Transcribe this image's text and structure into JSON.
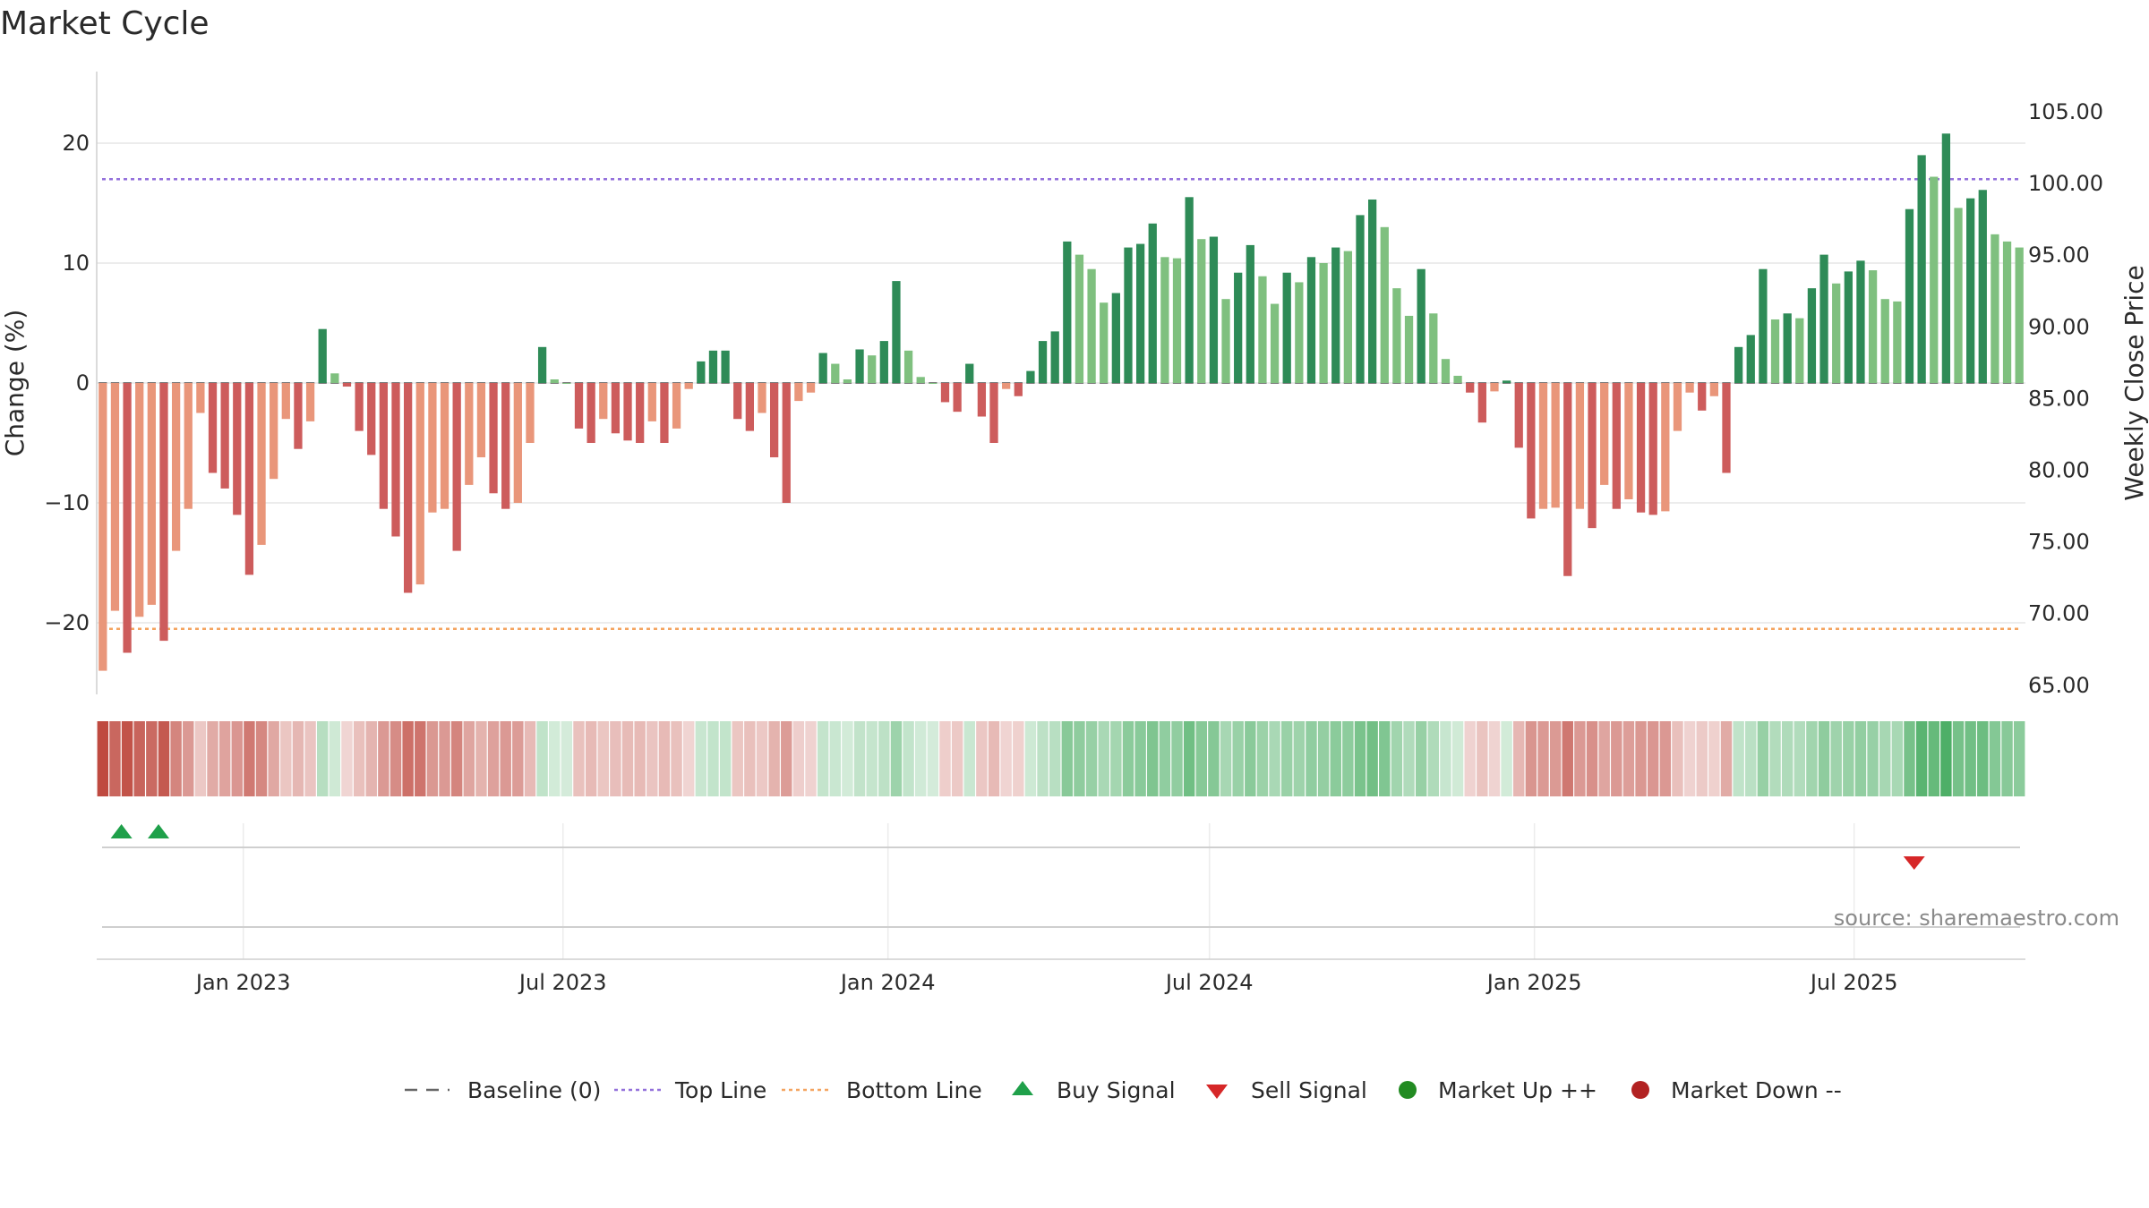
{
  "title": "Market Cycle",
  "chart_data": {
    "type": "bar",
    "title": "Market Cycle",
    "ylabel_left": "Change (%)",
    "ylabel_right": "Weekly Close Price",
    "ylim_left": [
      -26,
      26
    ],
    "ylim_right": [
      65,
      106
    ],
    "yticks_left": [
      20,
      10,
      0,
      -10,
      -20
    ],
    "yticks_left_labels": [
      "20",
      "10",
      "0",
      "−10",
      "−20"
    ],
    "yticks_right": [
      "105.00",
      "100.00",
      "95.00",
      "90.00",
      "85.00",
      "80.00",
      "75.00",
      "70.00",
      "65.00"
    ],
    "x_start": "2022-10-10",
    "x_end": "2025-10-06",
    "x_ticks": [
      {
        "date": "2023-01-01",
        "label": "Jan 2023"
      },
      {
        "date": "2023-07-01",
        "label": "Jul 2023"
      },
      {
        "date": "2024-01-01",
        "label": "Jan 2024"
      },
      {
        "date": "2024-07-01",
        "label": "Jul 2024"
      },
      {
        "date": "2025-01-01",
        "label": "Jan 2025"
      },
      {
        "date": "2025-07-01",
        "label": "Jul 2025"
      }
    ],
    "top_line": 17,
    "bottom_line": -20.5,
    "grid": true,
    "values": [
      -24,
      -19,
      -22.5,
      -19.5,
      -18.5,
      -21.5,
      -14,
      -10.5,
      -2.5,
      -7.5,
      -8.8,
      -11,
      -16,
      -13.5,
      -8,
      -3,
      -5.5,
      -3.2,
      4.5,
      0.8,
      -0.3,
      -4,
      -6,
      -10.5,
      -12.8,
      -17.5,
      -16.8,
      -10.8,
      -10.5,
      -14,
      -8.5,
      -6.2,
      -9.2,
      -10.5,
      -10,
      -5,
      3,
      0.3,
      0,
      -3.8,
      -5,
      -3,
      -4.2,
      -4.8,
      -5,
      -3.2,
      -5,
      -3.8,
      -0.5,
      1.8,
      2.7,
      2.7,
      -3,
      -4,
      -2.5,
      -6.2,
      -10,
      -1.5,
      -0.8,
      2.5,
      1.6,
      0.3,
      2.8,
      2.3,
      3.5,
      8.5,
      2.7,
      0.5,
      0,
      -1.6,
      -2.4,
      1.6,
      -2.8,
      -5,
      -0.5,
      -1.1,
      1,
      3.5,
      4.3,
      11.8,
      10.7,
      9.5,
      6.7,
      7.5,
      11.3,
      11.6,
      13.3,
      10.5,
      10.4,
      15.5,
      12,
      12.2,
      7,
      9.2,
      11.5,
      8.9,
      6.6,
      9.2,
      8.4,
      10.5,
      10,
      11.3,
      11,
      14,
      15.3,
      13,
      7.9,
      5.6,
      9.5,
      5.8,
      2,
      0.6,
      -0.8,
      -3.3,
      -0.7,
      0.2,
      -5.4,
      -11.3,
      -10.5,
      -10.4,
      -16.1,
      -10.5,
      -12.1,
      -8.5,
      -10.5,
      -9.7,
      -10.8,
      -11,
      -10.7,
      -4,
      -0.8,
      -2.3,
      -1.1,
      -7.5,
      3,
      4,
      9.5,
      5.3,
      5.8,
      5.4,
      7.9,
      10.7,
      8.3,
      9.3,
      10.2,
      9.4,
      7,
      6.8,
      14.5,
      19,
      17.2,
      20.8,
      14.6,
      15.4,
      16.1,
      12.4,
      11.8,
      11.3
    ],
    "buy_signals": [
      "2022-10-24",
      "2022-11-14"
    ],
    "sell_signals": [
      "2025-08-04"
    ],
    "legend": [
      {
        "key": "baseline",
        "label": "Baseline (0)"
      },
      {
        "key": "top",
        "label": "Top Line"
      },
      {
        "key": "bottom",
        "label": "Bottom Line"
      },
      {
        "key": "buy",
        "label": "Buy Signal"
      },
      {
        "key": "sell",
        "label": "Sell Signal"
      },
      {
        "key": "up",
        "label": "Market Up ++"
      },
      {
        "key": "down",
        "label": "Market Down --"
      }
    ],
    "legend_position": "bottom-center",
    "source": "source: sharemaestro.com",
    "colors": {
      "up_dark": "#2e8b57",
      "up_light": "#7fc07f",
      "down_dark": "#cd5c5c",
      "down_light": "#e9967a",
      "top_line": "#9370db",
      "bottom_line": "#f4a460",
      "baseline": "#555555",
      "buy": "#1fa04a",
      "sell": "#d62728",
      "market_up": "#228b22",
      "market_down": "#b22222"
    }
  }
}
